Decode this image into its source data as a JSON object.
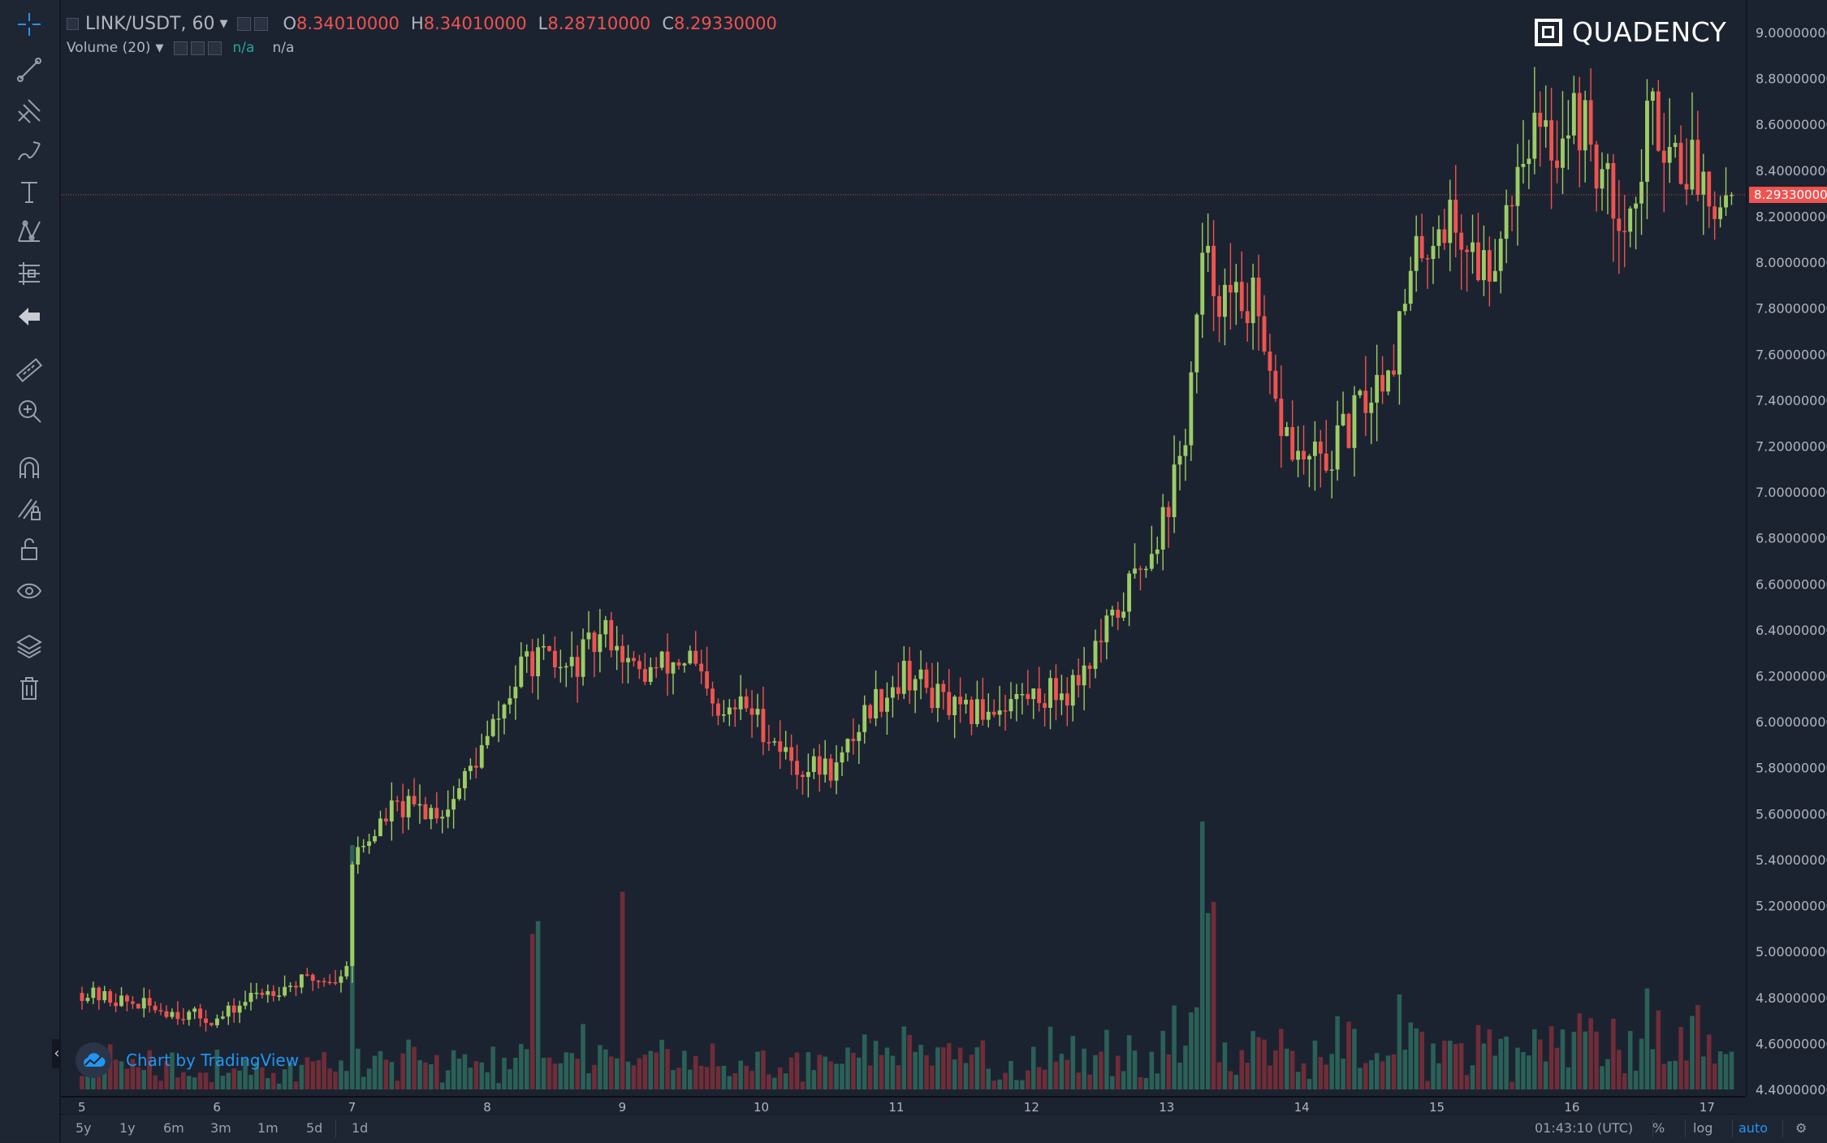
{
  "colors": {
    "background": "#1c2330",
    "up": "#9ccc65",
    "down": "#ef5350",
    "vol_up": "#2e6b5e",
    "vol_down": "#7e2f3a",
    "accent": "#2196f3",
    "last_price_bg": "#ef5350"
  },
  "legend": {
    "symbol": "LINK/USDT, 60",
    "open_label": "O",
    "open": "8.34010000",
    "high_label": "H",
    "high": "8.34010000",
    "low_label": "L",
    "low": "8.28710000",
    "close_label": "C",
    "close": "8.29330000",
    "volume_label": "Volume (20)",
    "volume_value_1": "n/a",
    "volume_value_2": "n/a"
  },
  "watermark": "QUADENCY",
  "badge": "Chart by TradingView",
  "toolbar": {
    "icons": [
      "crosshair-icon",
      "trend-line-icon",
      "pitchfork-icon",
      "brush-icon",
      "text-icon",
      "pattern-icon",
      "prediction-icon",
      "back-arrow-icon",
      "ruler-icon",
      "zoom-in-icon",
      "magnet-icon",
      "lock-drawing-icon",
      "unlock-icon",
      "eye-icon",
      "layers-icon",
      "trash-icon"
    ]
  },
  "bottom_bar": {
    "timeframes": [
      "5y",
      "1y",
      "6m",
      "3m",
      "1m",
      "5d",
      "1d"
    ],
    "clock": "01:43:10 (UTC)",
    "percent": "%",
    "log": "log",
    "auto": "auto"
  },
  "chart_data": {
    "type": "candlestick",
    "x_tick_labels": [
      "5",
      "6",
      "7",
      "8",
      "9",
      "10",
      "11",
      "12",
      "13",
      "14",
      "15",
      "16",
      "17"
    ],
    "y_tick_labels": [
      "9.00000000",
      "8.80000000",
      "8.60000000",
      "8.40000000",
      "8.20000000",
      "8.00000000",
      "7.80000000",
      "7.60000000",
      "7.40000000",
      "7.20000000",
      "7.00000000",
      "6.80000000",
      "6.60000000",
      "6.40000000",
      "6.20000000",
      "6.00000000",
      "5.80000000",
      "5.60000000",
      "5.40000000",
      "5.20000000",
      "5.00000000",
      "4.80000000",
      "4.60000000",
      "4.40000000"
    ],
    "ylim": [
      4.4,
      9.0
    ],
    "last_price": "8.29330000",
    "last_price_value": 8.2933,
    "bars_per_day": 24,
    "close_path_by_day": [
      [
        0,
        4.82
      ],
      [
        1,
        4.7
      ],
      [
        1.3,
        4.82
      ],
      [
        1.7,
        4.88
      ],
      [
        1.95,
        4.88
      ],
      [
        2.0,
        5.4
      ],
      [
        2.3,
        5.62
      ],
      [
        2.7,
        5.62
      ],
      [
        3.0,
        5.92
      ],
      [
        3.3,
        6.28
      ],
      [
        3.6,
        6.22
      ],
      [
        3.9,
        6.4
      ],
      [
        4.1,
        6.2
      ],
      [
        4.5,
        6.28
      ],
      [
        4.7,
        6.0
      ],
      [
        4.9,
        6.08
      ],
      [
        5.3,
        5.8
      ],
      [
        5.6,
        5.8
      ],
      [
        5.8,
        6.05
      ],
      [
        6.1,
        6.22
      ],
      [
        6.5,
        6.02
      ],
      [
        6.9,
        6.1
      ],
      [
        7.3,
        6.14
      ],
      [
        7.6,
        6.4
      ],
      [
        8.0,
        6.88
      ],
      [
        8.15,
        7.18
      ],
      [
        8.3,
        8.0
      ],
      [
        8.5,
        7.8
      ],
      [
        8.65,
        7.86
      ],
      [
        8.8,
        7.4
      ],
      [
        9.0,
        7.14
      ],
      [
        9.2,
        7.12
      ],
      [
        9.4,
        7.3
      ],
      [
        9.7,
        7.6
      ],
      [
        9.9,
        8.06
      ],
      [
        10.1,
        8.2
      ],
      [
        10.4,
        7.96
      ],
      [
        10.5,
        8.16
      ],
      [
        10.7,
        8.58
      ],
      [
        10.9,
        8.5
      ],
      [
        11.0,
        8.64
      ],
      [
        11.1,
        8.62
      ],
      [
        11.3,
        8.28
      ],
      [
        11.5,
        8.22
      ],
      [
        11.6,
        8.66
      ],
      [
        11.8,
        8.48
      ],
      [
        12.0,
        8.36
      ],
      [
        12.2,
        8.28
      ]
    ],
    "volume_spike_days": [
      8.3,
      8.35,
      2.0,
      3.35,
      4.0
    ]
  }
}
